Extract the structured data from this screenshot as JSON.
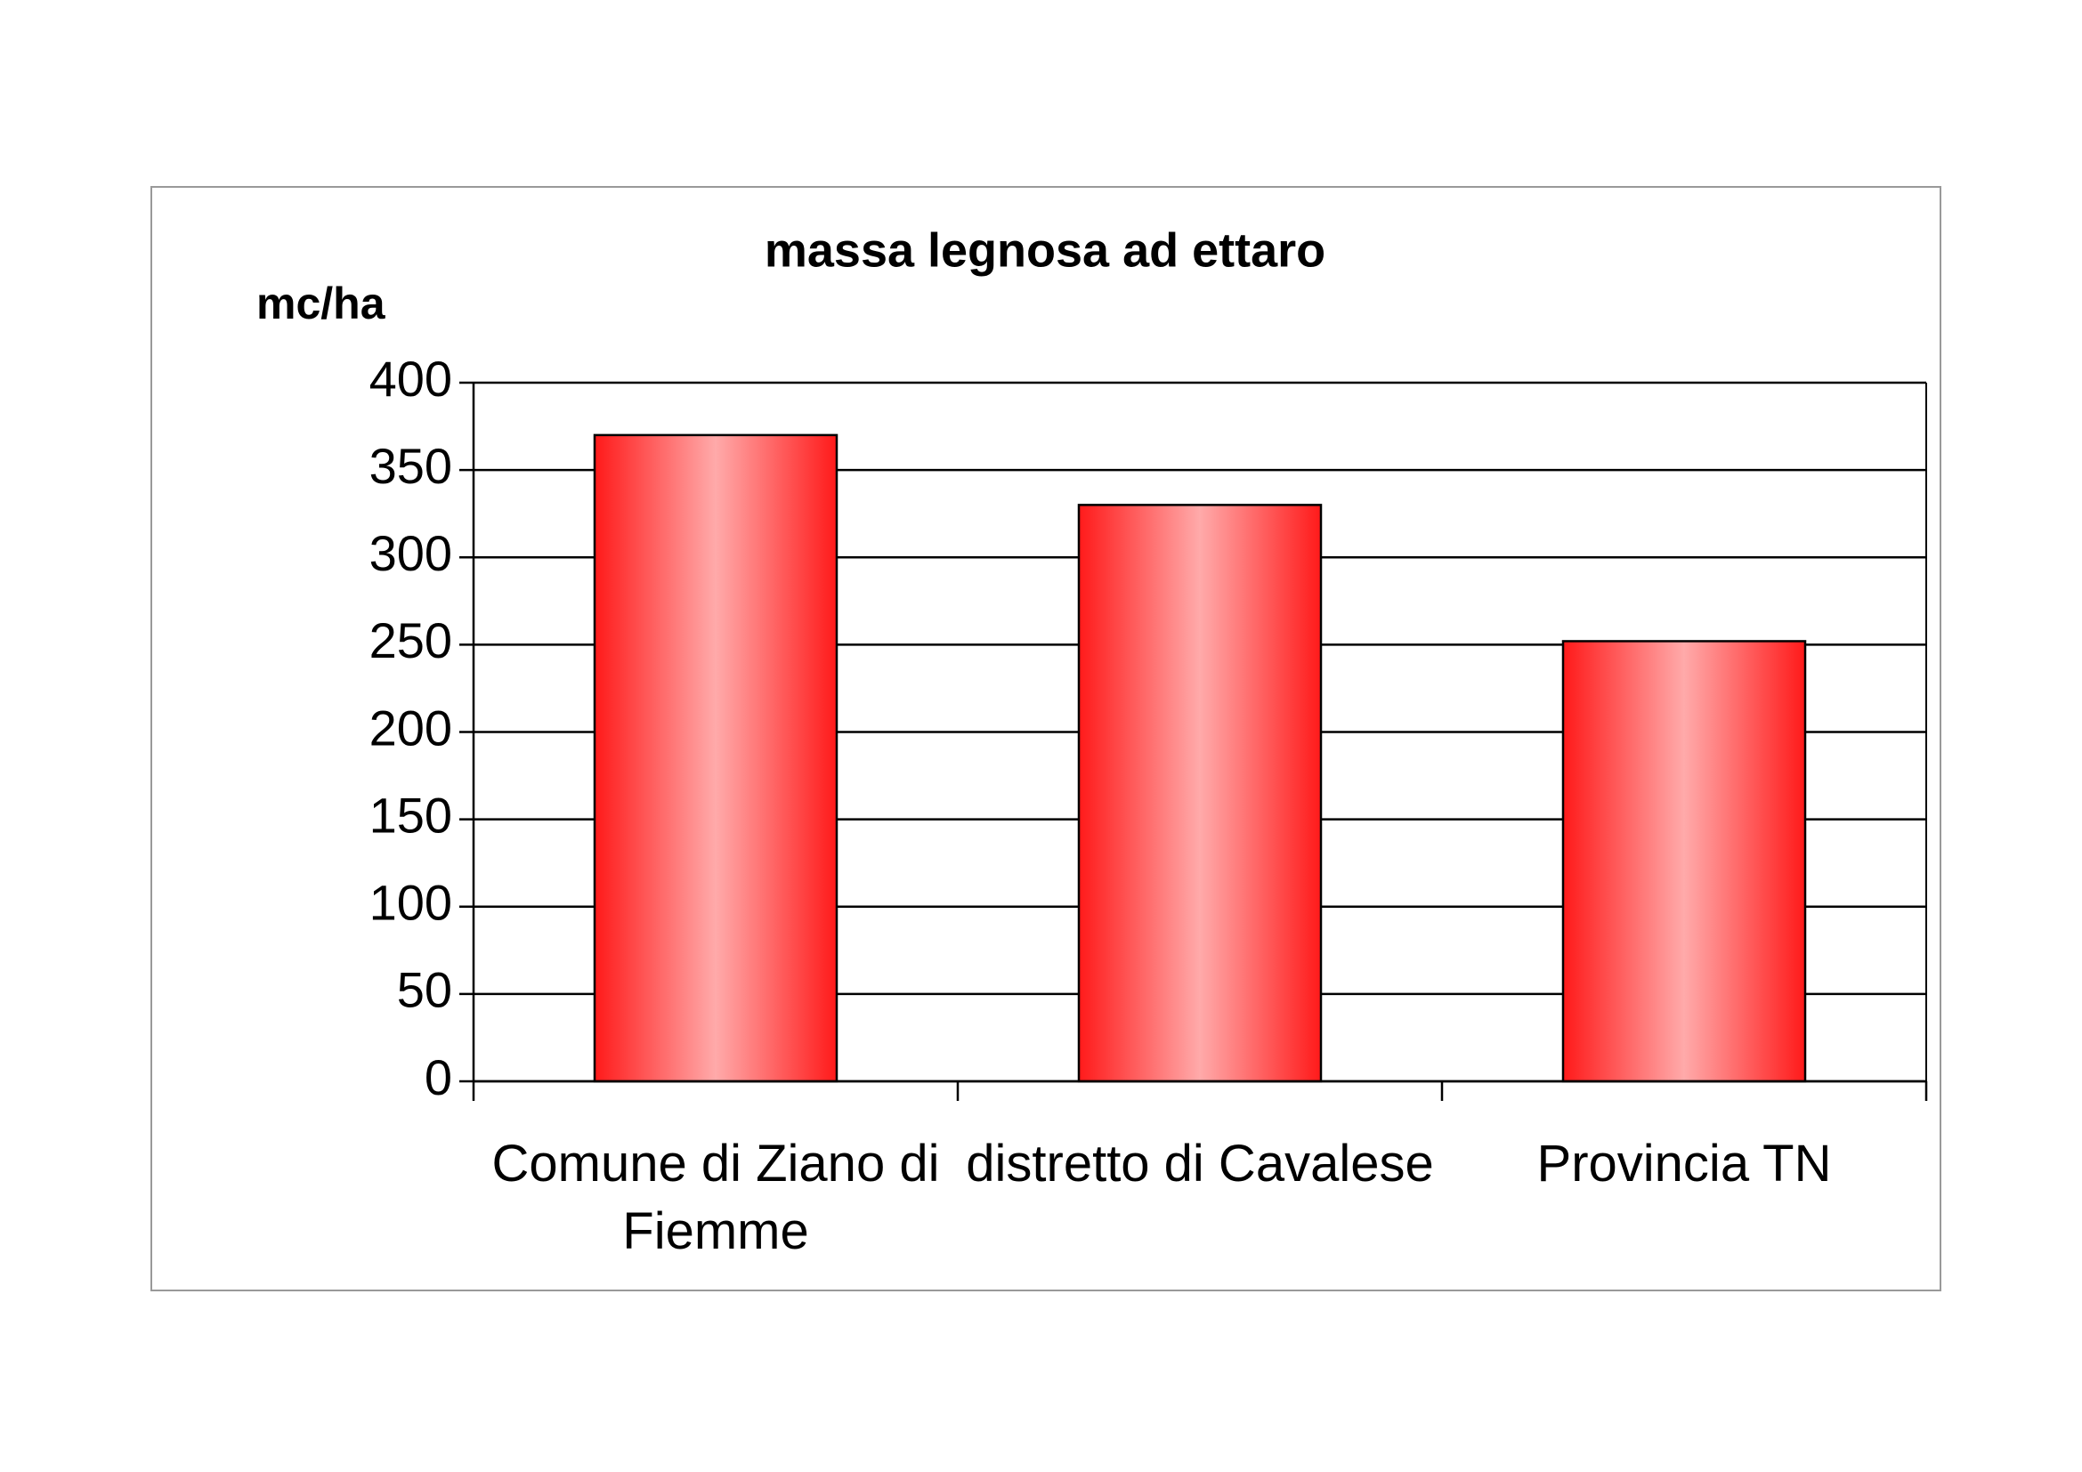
{
  "chart_data": {
    "type": "bar",
    "title": "massa legnosa ad ettaro",
    "y_label": "mc/ha",
    "categories": [
      "Comune di Ziano di Fiemme",
      "distretto di Cavalese",
      "Provincia TN"
    ],
    "values": [
      370,
      330,
      252
    ],
    "color": "#ff1a1a",
    "ylim": [
      0,
      400
    ],
    "yticks": [
      0,
      50,
      100,
      150,
      200,
      250,
      300,
      350,
      400
    ],
    "grid": true
  }
}
